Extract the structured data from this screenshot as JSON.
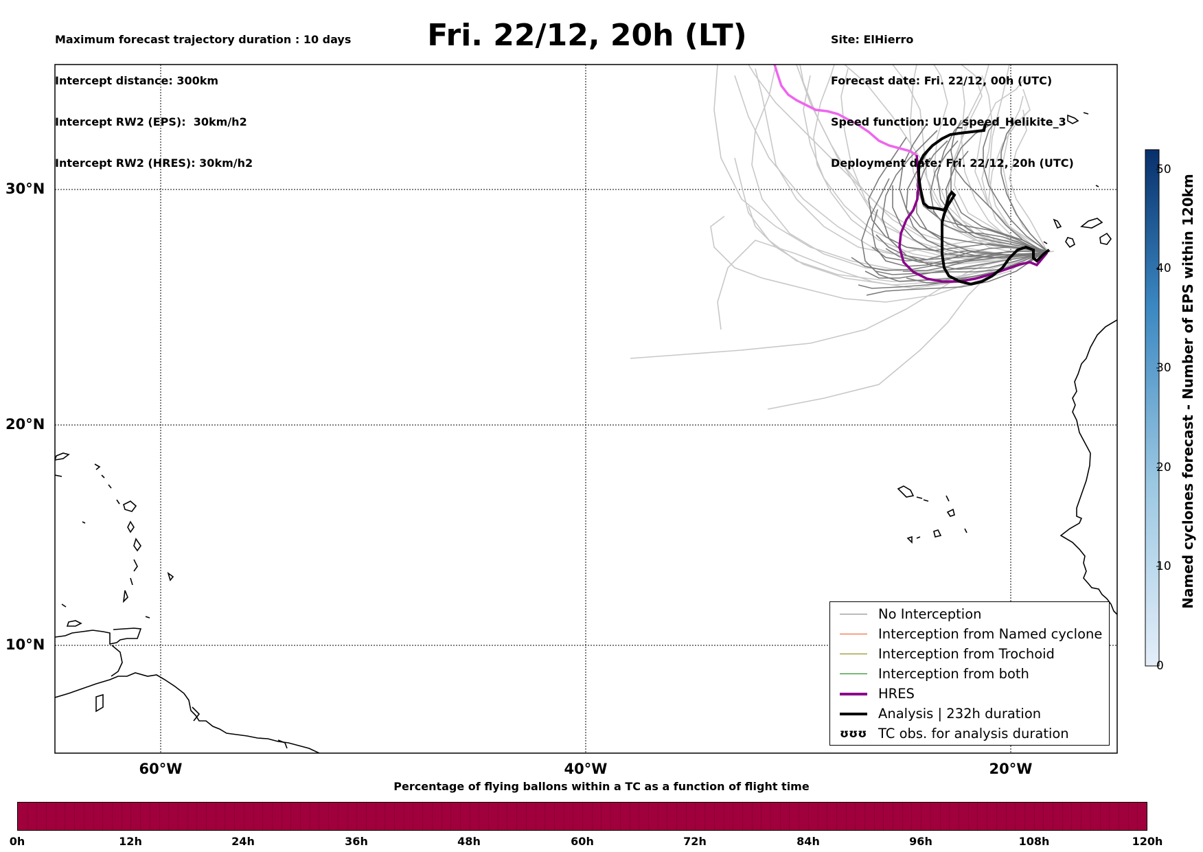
{
  "header": {
    "left_lines": [
      "Maximum forecast trajectory duration : 10 days",
      "Intercept distance: 300km",
      "Intercept RW2 (EPS):  30km/h2",
      "Intercept RW2 (HRES): 30km/h2"
    ],
    "title": "Fri. 22/12, 20h (LT)",
    "right_lines": [
      "Site: ElHierro",
      "Forecast date: Fri. 22/12, 00h (UTC)",
      "Speed function: U10_speed_Helikite_3",
      "Deployment date: Fri. 22/12, 20h (UTC)"
    ]
  },
  "map": {
    "lat_labels": [
      "30°N",
      "20°N",
      "10°N"
    ],
    "lon_labels": [
      "60°W",
      "40°W",
      "20°W"
    ],
    "grid": "dotted",
    "coastline_color": "#000000",
    "eps_member_color": "#7a7a7a",
    "eps_member_light_color": "#c8c8c8",
    "hres_color": "#8b008b",
    "hres_upper_color": "#ee66ee",
    "analysis_color": "#000000"
  },
  "legend": {
    "items": [
      {
        "label": "No Interception",
        "color": "#7f7f7f",
        "width": 1
      },
      {
        "label": "Interception from Named cyclone",
        "color": "#e8531f",
        "width": 1
      },
      {
        "label": "Interception from Trochoid",
        "color": "#808000",
        "width": 1
      },
      {
        "label": "Interception from both",
        "color": "#008000",
        "width": 1
      },
      {
        "label": "HRES",
        "color": "#8b008b",
        "width": 4
      },
      {
        "label": "Analysis | 232h duration",
        "color": "#000000",
        "width": 4
      },
      {
        "label": "TC obs. for analysis duration",
        "symbol": "ʊʊʊ"
      }
    ]
  },
  "colorbar": {
    "title": "Named cyclones forecast - Number of EPS within 120km",
    "ticks": [
      "0",
      "10",
      "20",
      "30",
      "40",
      "50"
    ],
    "min": 0,
    "max": 52,
    "color_low": "#e4eef9",
    "color_high": "#08306b"
  },
  "bottom": {
    "title": "Percentage of flying ballons within a TC as a function of flight time",
    "bar_color": "#a0003c",
    "ticks": [
      "0h",
      "12h",
      "24h",
      "36h",
      "48h",
      "60h",
      "72h",
      "84h",
      "96h",
      "108h",
      "120h"
    ]
  }
}
